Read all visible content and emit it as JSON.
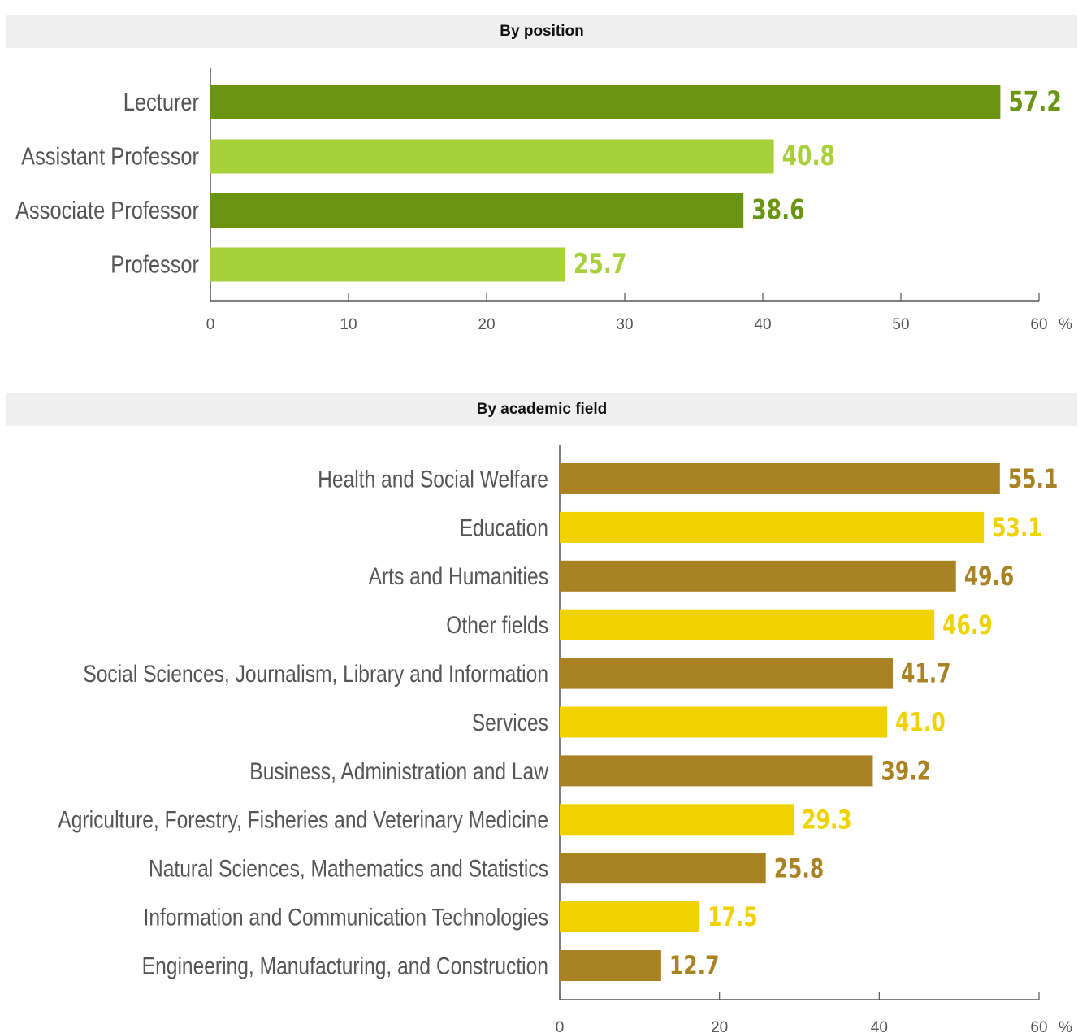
{
  "colors": {
    "position_dark": "#6a9412",
    "position_light": "#a8d03a",
    "field_dark": "#a98223",
    "field_light": "#f0d200",
    "axis": "#555555",
    "header_bg": "#efefef"
  },
  "chart_data": [
    {
      "type": "bar",
      "orientation": "horizontal",
      "title": "By position",
      "categories": [
        "Lecturer",
        "Assistant Professor",
        "Associate Professor",
        "Professor"
      ],
      "values": [
        57.2,
        40.8,
        38.6,
        25.7
      ],
      "value_labels": [
        "57.2",
        "40.8",
        "38.6",
        "25.7"
      ],
      "xlim": [
        0,
        60
      ],
      "xticks": [
        0,
        10,
        20,
        30,
        40,
        50,
        60
      ],
      "xtick_labels": [
        "0",
        "10",
        "20",
        "30",
        "40",
        "50",
        "60"
      ],
      "unit": "%",
      "grid": false
    },
    {
      "type": "bar",
      "orientation": "horizontal",
      "title": "By academic field",
      "categories": [
        "Health and Social Welfare",
        "Education",
        "Arts and Humanities",
        "Other fields",
        "Social Sciences, Journalism, Library and Information",
        "Services",
        "Business, Administration and Law",
        "Agriculture, Forestry, Fisheries and Veterinary Medicine",
        "Natural Sciences, Mathematics and Statistics",
        "Information and Communication Technologies",
        "Engineering, Manufacturing, and Construction"
      ],
      "values": [
        55.1,
        53.1,
        49.6,
        46.9,
        41.7,
        41.0,
        39.2,
        29.3,
        25.8,
        17.5,
        12.7
      ],
      "value_labels": [
        "55.1",
        "53.1",
        "49.6",
        "46.9",
        "41.7",
        "41.0",
        "39.2",
        "29.3",
        "25.8",
        "17.5",
        "12.7"
      ],
      "xlim": [
        0,
        60
      ],
      "xticks": [
        0,
        20,
        40,
        60
      ],
      "xtick_labels": [
        "0",
        "20",
        "40",
        "60"
      ],
      "unit": "%",
      "grid": false
    }
  ]
}
